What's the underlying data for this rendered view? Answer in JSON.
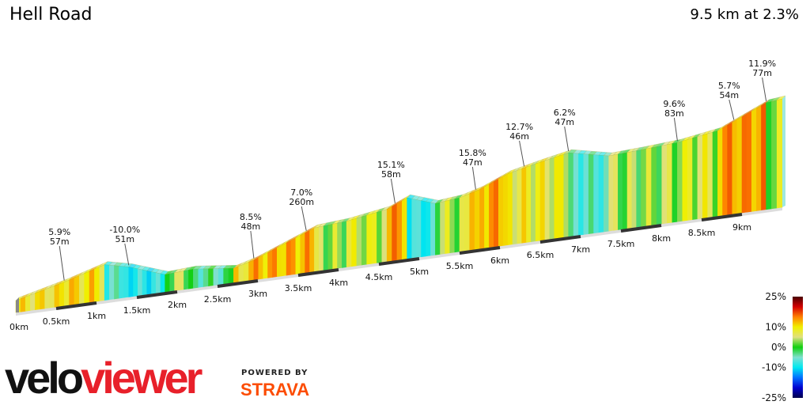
{
  "header": {
    "title": "Hell Road",
    "summary": "9.5 km at 2.3%"
  },
  "branding": {
    "logo_velo": "velo",
    "logo_viewer": "viewer",
    "powered_by": "POWERED BY",
    "strava": "STRAVA",
    "strava_color": "#fc4c02",
    "viewer_color": "#e8202a"
  },
  "chart_data": {
    "type": "area",
    "title": "Hell Road",
    "subtitle": "9.5 km at 2.3%",
    "xlabel": "",
    "ylabel": "",
    "x_unit": "km",
    "xlim": [
      0,
      9.5
    ],
    "profile": [
      [
        0,
        0
      ],
      [
        0.6,
        30
      ],
      [
        1.1,
        60
      ],
      [
        1.4,
        46
      ],
      [
        1.85,
        14
      ],
      [
        2.2,
        18
      ],
      [
        2.7,
        6
      ],
      [
        2.95,
        20
      ],
      [
        3.7,
        80
      ],
      [
        4.1,
        86
      ],
      [
        4.6,
        102
      ],
      [
        4.85,
        124
      ],
      [
        5.2,
        100
      ],
      [
        5.5,
        106
      ],
      [
        5.75,
        120
      ],
      [
        6.1,
        150
      ],
      [
        6.5,
        168
      ],
      [
        6.85,
        182
      ],
      [
        7.35,
        160
      ],
      [
        7.75,
        164
      ],
      [
        8.2,
        170
      ],
      [
        8.7,
        186
      ],
      [
        9.3,
        240
      ],
      [
        9.5,
        244
      ]
    ],
    "x_ticks": [
      "0km",
      "0.5km",
      "1km",
      "1.5km",
      "2km",
      "2.5km",
      "3km",
      "3.5km",
      "4km",
      "4.5km",
      "5km",
      "5.5km",
      "6km",
      "6.5km",
      "7km",
      "7.5km",
      "8km",
      "8.5km",
      "9km"
    ],
    "annotations": [
      {
        "km": 0.6,
        "grade": "5.9%",
        "length": "57m"
      },
      {
        "km": 1.4,
        "grade": "-10.0%",
        "length": "51m"
      },
      {
        "km": 2.95,
        "grade": "8.5%",
        "length": "48m"
      },
      {
        "km": 3.6,
        "grade": "7.0%",
        "length": "260m"
      },
      {
        "km": 4.7,
        "grade": "15.1%",
        "length": "58m"
      },
      {
        "km": 5.7,
        "grade": "15.8%",
        "length": "47m"
      },
      {
        "km": 6.3,
        "grade": "12.7%",
        "length": "46m"
      },
      {
        "km": 6.85,
        "grade": "6.2%",
        "length": "47m"
      },
      {
        "km": 8.2,
        "grade": "9.6%",
        "length": "83m"
      },
      {
        "km": 8.9,
        "grade": "5.7%",
        "length": "54m"
      },
      {
        "km": 9.3,
        "grade": "11.9%",
        "length": "77m"
      }
    ],
    "legend": {
      "placement": "bottom-right",
      "labels": [
        "25%",
        "10%",
        "0%",
        "-10%",
        "-25%"
      ],
      "values": [
        25,
        10,
        0,
        -10,
        -25
      ],
      "colors": [
        "#4a0000",
        "#d40000",
        "#ff8000",
        "#f0f000",
        "#e0e080",
        "#10d010",
        "#80e0d0",
        "#00e8f0",
        "#0070ff",
        "#0000d0",
        "#00004a"
      ]
    }
  }
}
